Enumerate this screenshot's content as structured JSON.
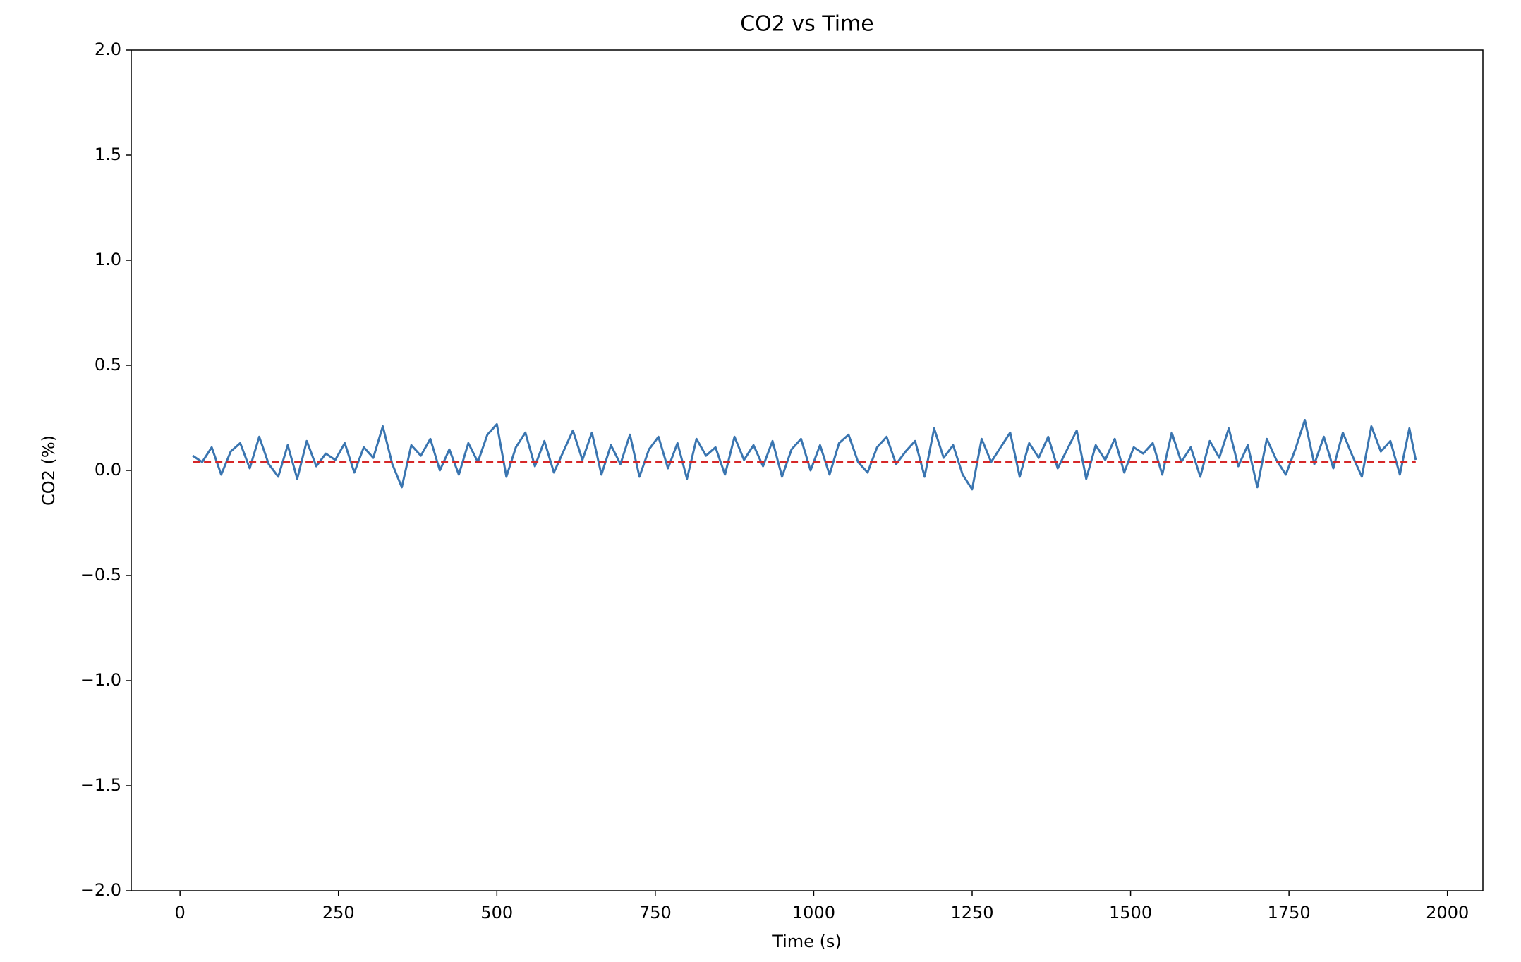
{
  "chart_data": {
    "type": "line",
    "title": "CO2 vs Time",
    "x_label": "Time (s)",
    "y_label": "CO2 (%)",
    "xlim": [
      -77,
      2056
    ],
    "xticks": [
      0,
      250,
      500,
      750,
      1000,
      1250,
      1500,
      1750,
      2000
    ],
    "ylim": [
      -2,
      2
    ],
    "yticks": [
      {
        "value": -2,
        "label": "−2.0"
      },
      {
        "value": -1.5,
        "label": "−1.5"
      },
      {
        "value": -1,
        "label": "−1.0"
      },
      {
        "value": -0.5,
        "label": "−0.5"
      },
      {
        "value": 0,
        "label": "0.0"
      },
      0.5,
      {
        "value": 1,
        "label": "1.0"
      },
      1.5,
      {
        "value": 2,
        "label": "2.0"
      }
    ],
    "grid": false,
    "series": [
      {
        "color": "#3a75b0",
        "linestyle": "solid",
        "x": [
          20,
          35,
          50,
          65,
          80,
          95,
          110,
          125,
          140,
          155,
          170,
          185,
          200,
          215,
          230,
          245,
          260,
          275,
          290,
          305,
          320,
          335,
          350,
          365,
          380,
          395,
          410,
          425,
          440,
          455,
          470,
          485,
          500,
          515,
          530,
          545,
          560,
          575,
          590,
          605,
          620,
          635,
          650,
          665,
          680,
          695,
          710,
          725,
          740,
          755,
          770,
          785,
          800,
          815,
          830,
          845,
          860,
          875,
          890,
          905,
          920,
          935,
          950,
          965,
          980,
          995,
          1010,
          1025,
          1040,
          1055,
          1070,
          1085,
          1100,
          1115,
          1130,
          1145,
          1160,
          1175,
          1190,
          1205,
          1220,
          1235,
          1250,
          1265,
          1280,
          1295,
          1310,
          1325,
          1340,
          1355,
          1370,
          1385,
          1400,
          1415,
          1430,
          1445,
          1460,
          1475,
          1490,
          1505,
          1520,
          1535,
          1550,
          1565,
          1580,
          1595,
          1610,
          1625,
          1640,
          1655,
          1670,
          1685,
          1700,
          1715,
          1730,
          1745,
          1760,
          1775,
          1790,
          1805,
          1820,
          1835,
          1850,
          1865,
          1880,
          1895,
          1910,
          1925,
          1940,
          1950
        ],
        "values": [
          0.07,
          0.04,
          0.11,
          -0.02,
          0.09,
          0.13,
          0.01,
          0.16,
          0.03,
          -0.03,
          0.12,
          -0.04,
          0.14,
          0.02,
          0.08,
          0.05,
          0.13,
          -0.01,
          0.11,
          0.06,
          0.21,
          0.03,
          -0.08,
          0.12,
          0.07,
          0.15,
          0.0,
          0.1,
          -0.02,
          0.13,
          0.04,
          0.17,
          0.22,
          -0.03,
          0.11,
          0.18,
          0.02,
          0.14,
          -0.01,
          0.09,
          0.19,
          0.05,
          0.18,
          -0.02,
          0.12,
          0.03,
          0.17,
          -0.03,
          0.1,
          0.16,
          0.01,
          0.13,
          -0.04,
          0.15,
          0.07,
          0.11,
          -0.02,
          0.16,
          0.05,
          0.12,
          0.02,
          0.14,
          -0.03,
          0.1,
          0.15,
          0.0,
          0.12,
          -0.02,
          0.13,
          0.17,
          0.04,
          -0.01,
          0.11,
          0.16,
          0.03,
          0.09,
          0.14,
          -0.03,
          0.2,
          0.06,
          0.12,
          -0.02,
          -0.09,
          0.15,
          0.04,
          0.11,
          0.18,
          -0.03,
          0.13,
          0.06,
          0.16,
          0.01,
          0.1,
          0.19,
          -0.04,
          0.12,
          0.05,
          0.15,
          -0.01,
          0.11,
          0.08,
          0.13,
          -0.02,
          0.18,
          0.04,
          0.11,
          -0.03,
          0.14,
          0.06,
          0.2,
          0.02,
          0.12,
          -0.08,
          0.15,
          0.05,
          -0.02,
          0.1,
          0.24,
          0.03,
          0.16,
          0.01,
          0.18,
          0.07,
          -0.03,
          0.21,
          0.09,
          0.14,
          -0.02,
          0.2,
          0.05
        ]
      },
      {
        "color": "#d62728",
        "linestyle": "dashed",
        "x": [
          20,
          1950
        ],
        "values": [
          0.04,
          0.04
        ]
      }
    ]
  }
}
